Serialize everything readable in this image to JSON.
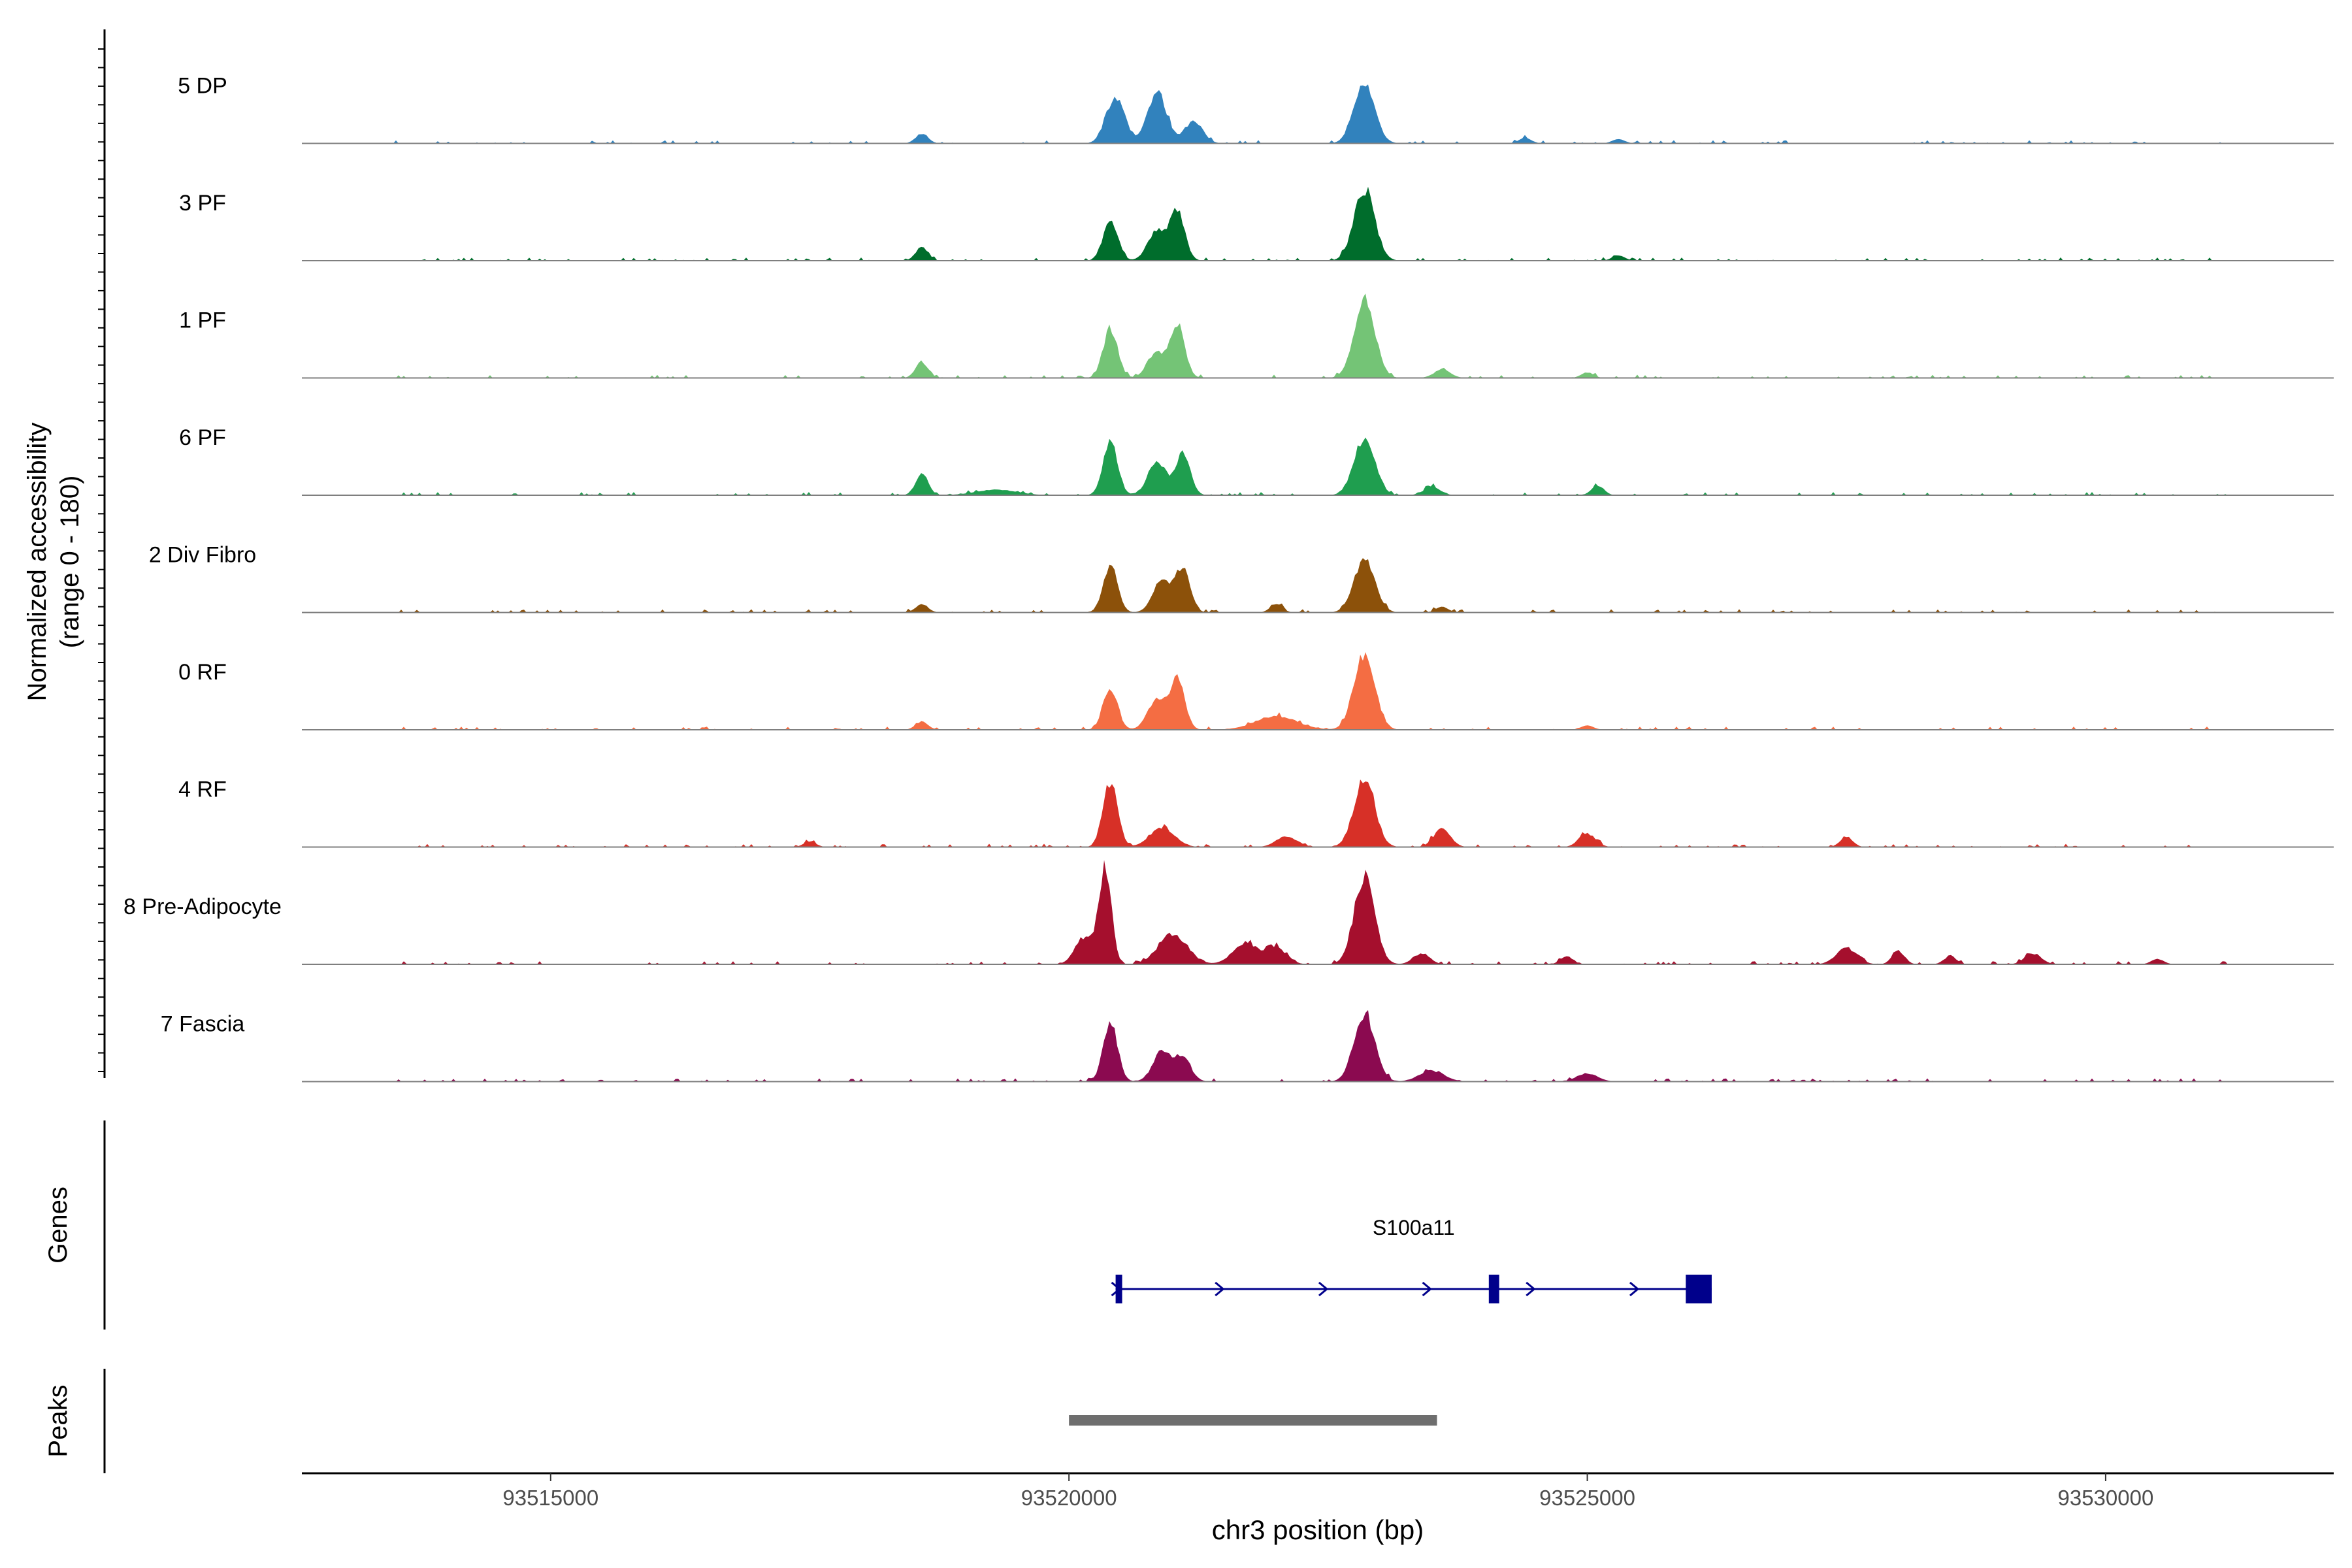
{
  "chart_data": {
    "type": "area",
    "chromosome": "chr3",
    "ylabel_line1": "Normalized accessibility",
    "ylabel_line2": "(range 0 - 180)",
    "xlabel": "chr3 position (bp)",
    "y_range": [
      0,
      180
    ],
    "xlim": [
      93512600,
      93532200
    ],
    "x_ticks": [
      93515000,
      93520000,
      93525000,
      93530000
    ],
    "x_tick_labels": [
      "93515000",
      "93520000",
      "93525000",
      "93530000"
    ],
    "tracks": [
      {
        "name": "5 DP",
        "color": "#3182BD",
        "peaks": [
          [
            93518580,
            18,
            60
          ],
          [
            93520450,
            85,
            90
          ],
          [
            93520850,
            95,
            90
          ],
          [
            93521200,
            40,
            90
          ],
          [
            93522850,
            110,
            100
          ],
          [
            93524400,
            10,
            60
          ],
          [
            93525300,
            8,
            60
          ]
        ]
      },
      {
        "name": "3 PF",
        "color": "#006D2C",
        "peaks": [
          [
            93518580,
            25,
            60
          ],
          [
            93520400,
            75,
            70
          ],
          [
            93520850,
            55,
            90
          ],
          [
            93521050,
            90,
            70
          ],
          [
            93522850,
            130,
            100
          ],
          [
            93525300,
            10,
            60
          ]
        ]
      },
      {
        "name": "1 PF",
        "color": "#74C476",
        "peaks": [
          [
            93518580,
            30,
            60
          ],
          [
            93520400,
            90,
            70
          ],
          [
            93520850,
            45,
            90
          ],
          [
            93521050,
            95,
            70
          ],
          [
            93522850,
            145,
            100
          ],
          [
            93523600,
            15,
            80
          ],
          [
            93525000,
            10,
            60
          ]
        ]
      },
      {
        "name": "6 PF",
        "color": "#1F9E4F",
        "peaks": [
          [
            93518580,
            40,
            60
          ],
          [
            93520400,
            100,
            70
          ],
          [
            93520850,
            60,
            90
          ],
          [
            93521100,
            75,
            70
          ],
          [
            93522850,
            105,
            100
          ],
          [
            93523500,
            15,
            80
          ],
          [
            93525100,
            18,
            60
          ],
          [
            93519300,
            10,
            200
          ]
        ]
      },
      {
        "name": "2 Div Fibro",
        "color": "#8C510A",
        "peaks": [
          [
            93518580,
            15,
            60
          ],
          [
            93520400,
            85,
            70
          ],
          [
            93520900,
            55,
            90
          ],
          [
            93521100,
            80,
            70
          ],
          [
            93522000,
            15,
            60
          ],
          [
            93522850,
            100,
            100
          ],
          [
            93523600,
            10,
            60
          ]
        ]
      },
      {
        "name": "0 RF",
        "color": "#F46D43",
        "peaks": [
          [
            93518580,
            15,
            60
          ],
          [
            93520400,
            75,
            70
          ],
          [
            93520850,
            55,
            90
          ],
          [
            93521050,
            90,
            70
          ],
          [
            93522000,
            25,
            200
          ],
          [
            93522850,
            140,
            100
          ],
          [
            93525000,
            8,
            60
          ]
        ]
      },
      {
        "name": "4 RF",
        "color": "#D73027",
        "peaks": [
          [
            93520400,
            120,
            70
          ],
          [
            93520900,
            35,
            120
          ],
          [
            93522100,
            20,
            100
          ],
          [
            93522850,
            125,
            100
          ],
          [
            93523600,
            35,
            80
          ],
          [
            93525000,
            25,
            80
          ],
          [
            93527500,
            20,
            60
          ],
          [
            93517500,
            10,
            60
          ]
        ]
      },
      {
        "name": "8 Pre-Adipocyte",
        "color": "#A50F2D",
        "peaks": [
          [
            93520350,
            175,
            60
          ],
          [
            93520150,
            50,
            90
          ],
          [
            93521000,
            55,
            140
          ],
          [
            93521700,
            40,
            120
          ],
          [
            93522000,
            30,
            100
          ],
          [
            93522850,
            160,
            100
          ],
          [
            93523400,
            20,
            80
          ],
          [
            93524800,
            15,
            60
          ],
          [
            93527500,
            30,
            100
          ],
          [
            93528000,
            25,
            60
          ],
          [
            93528500,
            15,
            60
          ],
          [
            93529300,
            20,
            80
          ],
          [
            93530500,
            10,
            60
          ]
        ]
      },
      {
        "name": "7 Fascia",
        "color": "#8B0A50",
        "peaks": [
          [
            93520400,
            110,
            70
          ],
          [
            93520900,
            55,
            90
          ],
          [
            93521100,
            40,
            80
          ],
          [
            93522850,
            125,
            100
          ],
          [
            93523500,
            20,
            120
          ],
          [
            93525000,
            15,
            100
          ]
        ]
      }
    ],
    "genes_label": "Genes",
    "gene": {
      "name": "S100a11",
      "strand": "+",
      "start": 93520450,
      "end": 93526200,
      "exons": [
        [
          93520450,
          93520500
        ],
        [
          93524050,
          93524150
        ],
        [
          93525950,
          93526200
        ]
      ],
      "color": "#00008B"
    },
    "peaks_label": "Peaks",
    "peak_regions": [
      [
        93520000,
        93523550
      ]
    ],
    "peak_color": "#6E6E6E"
  }
}
